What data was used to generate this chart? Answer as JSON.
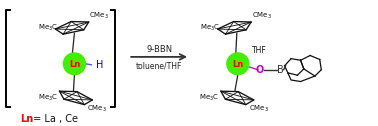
{
  "bg_color": "#ffffff",
  "arrow_color": "#333333",
  "ln_color": "#44ee00",
  "ln_text_color": "#ff0000",
  "h_color": "#0000cc",
  "o_color": "#cc00cc",
  "bracket_color": "#000000",
  "reaction_label1": "9-BBN",
  "reaction_label2": "toluene/THF",
  "ln_label": "Ln",
  "h_label": "H",
  "o_label": "O",
  "b_label": "B",
  "thf_label": "THF",
  "footer_ln": "Ln",
  "footer_text": " = La , Ce",
  "figw": 3.78,
  "figh": 1.26,
  "dpi": 100
}
